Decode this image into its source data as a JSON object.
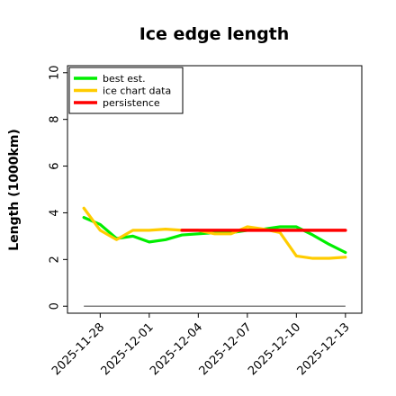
{
  "chart_data": {
    "type": "line",
    "title": "Ice edge length",
    "xlabel": "",
    "ylabel": "Length (1000km)",
    "ylim": [
      -0.3,
      10.3
    ],
    "xlim": [
      "2025-11-26",
      "2025-12-14"
    ],
    "yticks": [
      0,
      2,
      4,
      6,
      8,
      10
    ],
    "xticks": [
      "2025-11-28",
      "2025-12-01",
      "2025-12-04",
      "2025-12-07",
      "2025-12-10",
      "2025-12-13"
    ],
    "grid": false,
    "legend_position": "top-left",
    "series": [
      {
        "name": "best est.",
        "color": "#00ee00",
        "points": [
          [
            "2025-11-27",
            3.8
          ],
          [
            "2025-11-28",
            3.5
          ],
          [
            "2025-11-29",
            2.9
          ],
          [
            "2025-11-30",
            3.0
          ],
          [
            "2025-12-01",
            2.75
          ],
          [
            "2025-12-02",
            2.85
          ],
          [
            "2025-12-03",
            3.05
          ],
          [
            "2025-12-04",
            3.1
          ],
          [
            "2025-12-05",
            3.15
          ],
          [
            "2025-12-06",
            3.15
          ],
          [
            "2025-12-07",
            3.25
          ],
          [
            "2025-12-08",
            3.3
          ],
          [
            "2025-12-09",
            3.4
          ],
          [
            "2025-12-10",
            3.4
          ],
          [
            "2025-12-11",
            3.05
          ],
          [
            "2025-12-12",
            2.65
          ],
          [
            "2025-12-13",
            2.3
          ]
        ]
      },
      {
        "name": "ice chart data",
        "color": "#ffcc00",
        "points": [
          [
            "2025-11-27",
            4.2
          ],
          [
            "2025-11-28",
            3.25
          ],
          [
            "2025-11-29",
            2.85
          ],
          [
            "2025-11-30",
            3.25
          ],
          [
            "2025-12-01",
            3.25
          ],
          [
            "2025-12-02",
            3.3
          ],
          [
            "2025-12-03",
            3.25
          ],
          [
            "2025-12-04",
            3.25
          ],
          [
            "2025-12-05",
            3.1
          ],
          [
            "2025-12-06",
            3.1
          ],
          [
            "2025-12-07",
            3.4
          ],
          [
            "2025-12-08",
            3.3
          ],
          [
            "2025-12-09",
            3.15
          ],
          [
            "2025-12-10",
            2.15
          ],
          [
            "2025-12-11",
            2.05
          ],
          [
            "2025-12-12",
            2.05
          ],
          [
            "2025-12-13",
            2.1
          ]
        ]
      },
      {
        "name": "persistence",
        "color": "#ff0000",
        "points": [
          [
            "2025-12-03",
            3.25
          ],
          [
            "2025-12-13",
            3.25
          ]
        ]
      }
    ],
    "baseline": {
      "color": "#808080",
      "points": [
        [
          "2025-11-27",
          0
        ],
        [
          "2025-12-13",
          0
        ]
      ]
    }
  }
}
